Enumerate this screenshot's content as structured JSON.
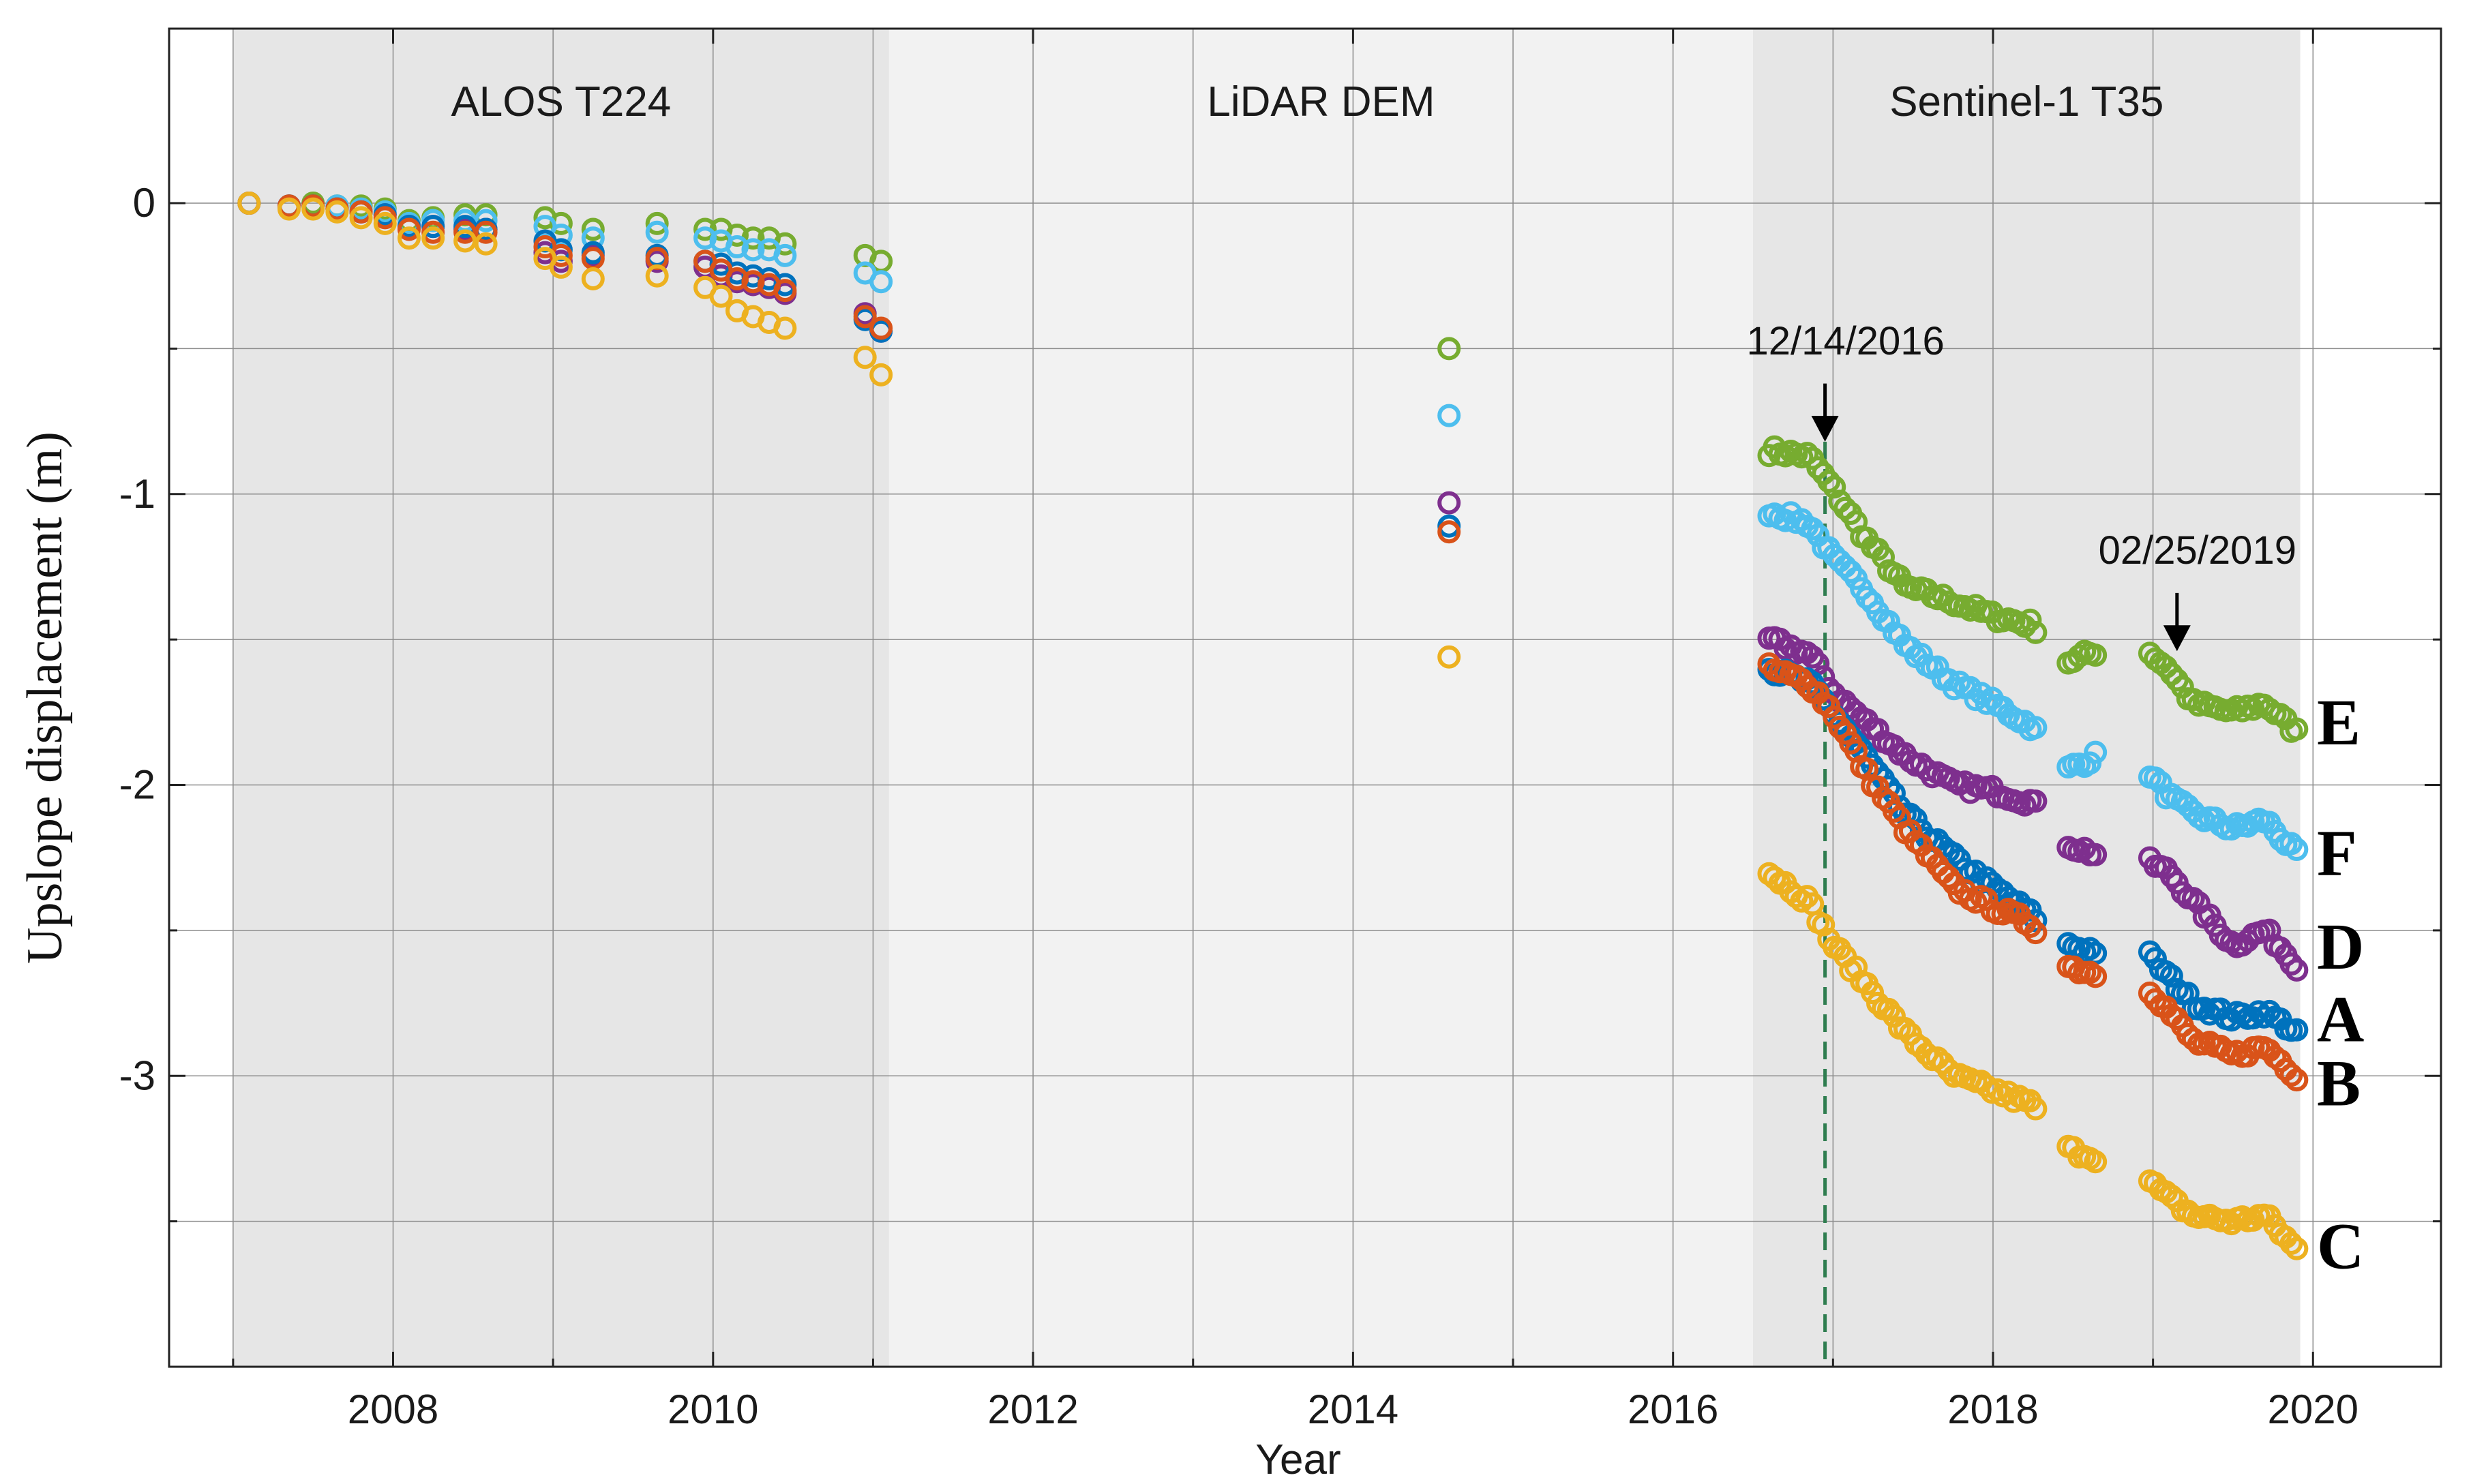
{
  "chart_data": {
    "type": "scatter",
    "title": "",
    "xlabel": "Year",
    "ylabel": "Upslope displacement (m)",
    "xlim": [
      2006.6,
      2020.8
    ],
    "ylim": [
      -4.0,
      0.6
    ],
    "xticks": [
      2008,
      2010,
      2012,
      2014,
      2016,
      2018,
      2020
    ],
    "yticks": [
      0,
      -1,
      -2,
      -3
    ],
    "minor_yticks": [
      -0.5,
      -1.5,
      -2.5,
      -3.5
    ],
    "grid": true,
    "legend": "series letters drawn at right end of each series",
    "periods": [
      {
        "label": "ALOS T224",
        "start": 2007.0,
        "end": 2011.1,
        "shade": "#e6e6e6"
      },
      {
        "label": "LiDAR DEM",
        "start": 2011.1,
        "end": 2016.5,
        "shade": "#f2f2f2"
      },
      {
        "label": "Sentinel-1 T35",
        "start": 2016.5,
        "end": 2019.92,
        "shade": "#e6e6e6"
      }
    ],
    "event_line": {
      "x": 16.95,
      "year": 2016.95,
      "color": "#2e7d4f"
    },
    "annotations": [
      {
        "text": "12/14/2016",
        "x": 2016.95,
        "y_text": -0.52,
        "arrow_from": -0.62,
        "arrow_to": -0.82
      },
      {
        "text": "02/25/2019",
        "x": 2019.15,
        "y_text": -1.24,
        "arrow_from": -1.34,
        "arrow_to": -1.54
      }
    ],
    "series": [
      {
        "name": "E",
        "color": "#77ac30",
        "alos": {
          "x": [
            2007.1,
            2007.35,
            2007.5,
            2007.65,
            2007.8,
            2007.95,
            2008.1,
            2008.25,
            2008.45,
            2008.58,
            2008.95,
            2009.05,
            2009.25,
            2009.65,
            2009.95,
            2010.05,
            2010.15,
            2010.25,
            2010.35,
            2010.45,
            2010.95,
            2011.05
          ],
          "y": [
            0.0,
            -0.01,
            0.0,
            -0.01,
            -0.01,
            -0.02,
            -0.06,
            -0.05,
            -0.04,
            -0.04,
            -0.05,
            -0.07,
            -0.09,
            -0.07,
            -0.09,
            -0.09,
            -0.11,
            -0.12,
            -0.12,
            -0.14,
            -0.18,
            -0.2
          ]
        },
        "lidar": {
          "x": [
            2014.6
          ],
          "y": [
            -0.5
          ]
        },
        "s1": {
          "start": 2016.6,
          "end": 2019.9,
          "kx": [
            2016.6,
            2016.85,
            2017.0,
            2017.2,
            2017.45,
            2017.75,
            2018.0,
            2018.25,
            2018.45,
            2018.65,
            2018.95,
            2019.1,
            2019.25,
            2019.5,
            2019.7,
            2019.9
          ],
          "ky": [
            -0.85,
            -0.87,
            -0.98,
            -1.15,
            -1.32,
            -1.37,
            -1.42,
            -1.45,
            -1.58,
            -1.54,
            -1.53,
            -1.6,
            -1.72,
            -1.75,
            -1.72,
            -1.82
          ],
          "gaps": [
            [
              2018.3,
              2018.45
            ],
            [
              2018.65,
              2018.95
            ]
          ]
        },
        "label_y": -1.8
      },
      {
        "name": "F",
        "color": "#4dbeee",
        "alos": {
          "x": [
            2007.1,
            2007.35,
            2007.5,
            2007.65,
            2007.8,
            2007.95,
            2008.1,
            2008.25,
            2008.45,
            2008.58,
            2008.95,
            2009.05,
            2009.25,
            2009.65,
            2009.95,
            2010.05,
            2010.15,
            2010.25,
            2010.35,
            2010.45,
            2010.95,
            2011.05
          ],
          "y": [
            0.0,
            -0.01,
            -0.01,
            -0.01,
            -0.02,
            -0.03,
            -0.07,
            -0.06,
            -0.06,
            -0.06,
            -0.08,
            -0.11,
            -0.12,
            -0.1,
            -0.12,
            -0.13,
            -0.15,
            -0.16,
            -0.16,
            -0.18,
            -0.24,
            -0.27
          ]
        },
        "lidar": {
          "x": [
            2014.6
          ],
          "y": [
            -0.73
          ]
        },
        "s1": {
          "start": 2016.6,
          "end": 2019.9,
          "kx": [
            2016.6,
            2016.85,
            2017.0,
            2017.2,
            2017.45,
            2017.75,
            2018.0,
            2018.25,
            2018.45,
            2018.65,
            2018.95,
            2019.1,
            2019.25,
            2019.5,
            2019.7,
            2019.9
          ],
          "ky": [
            -1.06,
            -1.1,
            -1.22,
            -1.33,
            -1.52,
            -1.65,
            -1.72,
            -1.8,
            -1.95,
            -1.9,
            -1.94,
            -2.04,
            -2.1,
            -2.15,
            -2.12,
            -2.24
          ],
          "gaps": [
            [
              2018.3,
              2018.45
            ],
            [
              2018.65,
              2018.95
            ]
          ]
        },
        "label_y": -2.25
      },
      {
        "name": "D",
        "color": "#7e2f8e",
        "alos": {
          "x": [
            2007.1,
            2007.35,
            2007.5,
            2007.65,
            2007.8,
            2007.95,
            2008.1,
            2008.25,
            2008.45,
            2008.58,
            2008.95,
            2009.05,
            2009.25,
            2009.65,
            2009.95,
            2010.05,
            2010.15,
            2010.25,
            2010.35,
            2010.45,
            2010.95,
            2011.05
          ],
          "y": [
            0.0,
            -0.01,
            -0.01,
            -0.02,
            -0.03,
            -0.04,
            -0.08,
            -0.08,
            -0.09,
            -0.09,
            -0.17,
            -0.2,
            -0.18,
            -0.2,
            -0.22,
            -0.25,
            -0.27,
            -0.28,
            -0.29,
            -0.31,
            -0.38,
            -0.44
          ]
        },
        "lidar": {
          "x": [
            2014.6
          ],
          "y": [
            -1.03
          ]
        },
        "s1": {
          "start": 2016.6,
          "end": 2019.9,
          "kx": [
            2016.6,
            2016.85,
            2017.0,
            2017.2,
            2017.45,
            2017.75,
            2018.0,
            2018.25,
            2018.45,
            2018.65,
            2018.95,
            2019.1,
            2019.25,
            2019.5,
            2019.7,
            2019.9
          ],
          "ky": [
            -1.5,
            -1.55,
            -1.68,
            -1.78,
            -1.9,
            -2.0,
            -2.02,
            -2.06,
            -2.2,
            -2.24,
            -2.26,
            -2.3,
            -2.4,
            -2.55,
            -2.5,
            -2.62
          ],
          "gaps": [
            [
              2018.3,
              2018.45
            ],
            [
              2018.65,
              2018.95
            ]
          ]
        },
        "label_y": -2.57
      },
      {
        "name": "A",
        "color": "#0072bd",
        "alos": {
          "x": [
            2007.1,
            2007.35,
            2007.5,
            2007.65,
            2007.8,
            2007.95,
            2008.1,
            2008.25,
            2008.45,
            2008.58,
            2008.95,
            2009.05,
            2009.25,
            2009.65,
            2009.95,
            2010.05,
            2010.15,
            2010.25,
            2010.35,
            2010.45,
            2010.95,
            2011.05
          ],
          "y": [
            0.0,
            -0.01,
            -0.01,
            -0.02,
            -0.03,
            -0.04,
            -0.08,
            -0.08,
            -0.08,
            -0.09,
            -0.13,
            -0.16,
            -0.17,
            -0.18,
            -0.2,
            -0.21,
            -0.24,
            -0.25,
            -0.26,
            -0.28,
            -0.4,
            -0.44
          ]
        },
        "lidar": {
          "x": [
            2014.6
          ],
          "y": [
            -1.11
          ]
        },
        "s1": {
          "start": 2016.6,
          "end": 2019.9,
          "kx": [
            2016.6,
            2016.85,
            2017.0,
            2017.2,
            2017.45,
            2017.75,
            2018.0,
            2018.25,
            2018.45,
            2018.65,
            2018.95,
            2019.1,
            2019.25,
            2019.5,
            2019.7,
            2019.9
          ],
          "ky": [
            -1.6,
            -1.65,
            -1.75,
            -1.9,
            -2.1,
            -2.25,
            -2.35,
            -2.45,
            -2.55,
            -2.57,
            -2.57,
            -2.66,
            -2.75,
            -2.8,
            -2.78,
            -2.85
          ],
          "gaps": [
            [
              2018.3,
              2018.45
            ],
            [
              2018.65,
              2018.95
            ]
          ]
        },
        "label_y": -2.82
      },
      {
        "name": "B",
        "color": "#d95319",
        "alos": {
          "x": [
            2007.1,
            2007.35,
            2007.5,
            2007.65,
            2007.8,
            2007.95,
            2008.1,
            2008.25,
            2008.45,
            2008.58,
            2008.95,
            2009.05,
            2009.25,
            2009.65,
            2009.95,
            2010.05,
            2010.15,
            2010.25,
            2010.35,
            2010.45,
            2010.95,
            2011.05
          ],
          "y": [
            0.0,
            -0.01,
            -0.01,
            -0.02,
            -0.03,
            -0.05,
            -0.09,
            -0.1,
            -0.1,
            -0.1,
            -0.15,
            -0.18,
            -0.19,
            -0.19,
            -0.2,
            -0.23,
            -0.26,
            -0.27,
            -0.28,
            -0.3,
            -0.39,
            -0.43
          ]
        },
        "lidar": {
          "x": [
            2014.6
          ],
          "y": [
            -1.13
          ]
        },
        "s1": {
          "start": 2016.6,
          "end": 2019.9,
          "kx": [
            2016.6,
            2016.85,
            2017.0,
            2017.2,
            2017.45,
            2017.75,
            2018.0,
            2018.25,
            2018.45,
            2018.65,
            2018.95,
            2019.1,
            2019.25,
            2019.5,
            2019.7,
            2019.9
          ],
          "ky": [
            -1.6,
            -1.65,
            -1.75,
            -1.95,
            -2.15,
            -2.35,
            -2.42,
            -2.48,
            -2.62,
            -2.65,
            -2.68,
            -2.78,
            -2.88,
            -2.93,
            -2.9,
            -3.0
          ],
          "gaps": [
            [
              2018.3,
              2018.45
            ],
            [
              2018.65,
              2018.95
            ]
          ]
        },
        "label_y": -3.04
      },
      {
        "name": "C",
        "color": "#edb120",
        "alos": {
          "x": [
            2007.1,
            2007.35,
            2007.5,
            2007.65,
            2007.8,
            2007.95,
            2008.1,
            2008.25,
            2008.45,
            2008.58,
            2008.95,
            2009.05,
            2009.25,
            2009.65,
            2009.95,
            2010.05,
            2010.15,
            2010.25,
            2010.35,
            2010.45,
            2010.95,
            2011.05
          ],
          "y": [
            0.0,
            -0.02,
            -0.02,
            -0.03,
            -0.05,
            -0.07,
            -0.12,
            -0.12,
            -0.13,
            -0.14,
            -0.19,
            -0.22,
            -0.26,
            -0.25,
            -0.29,
            -0.32,
            -0.37,
            -0.39,
            -0.41,
            -0.43,
            -0.53,
            -0.59
          ]
        },
        "lidar": {
          "x": [
            2014.6
          ],
          "y": [
            -1.56
          ]
        },
        "s1": {
          "start": 2016.6,
          "end": 2019.9,
          "kx": [
            2016.6,
            2016.85,
            2017.0,
            2017.2,
            2017.45,
            2017.75,
            2018.0,
            2018.25,
            2018.45,
            2018.65,
            2018.95,
            2019.1,
            2019.25,
            2019.5,
            2019.7,
            2019.9
          ],
          "ky": [
            -2.3,
            -2.4,
            -2.55,
            -2.68,
            -2.85,
            -3.0,
            -3.05,
            -3.1,
            -3.25,
            -3.28,
            -3.35,
            -3.42,
            -3.48,
            -3.5,
            -3.48,
            -3.6
          ],
          "gaps": [
            [
              2018.3,
              2018.45
            ],
            [
              2018.65,
              2018.95
            ]
          ]
        },
        "label_y": -3.6
      }
    ]
  }
}
